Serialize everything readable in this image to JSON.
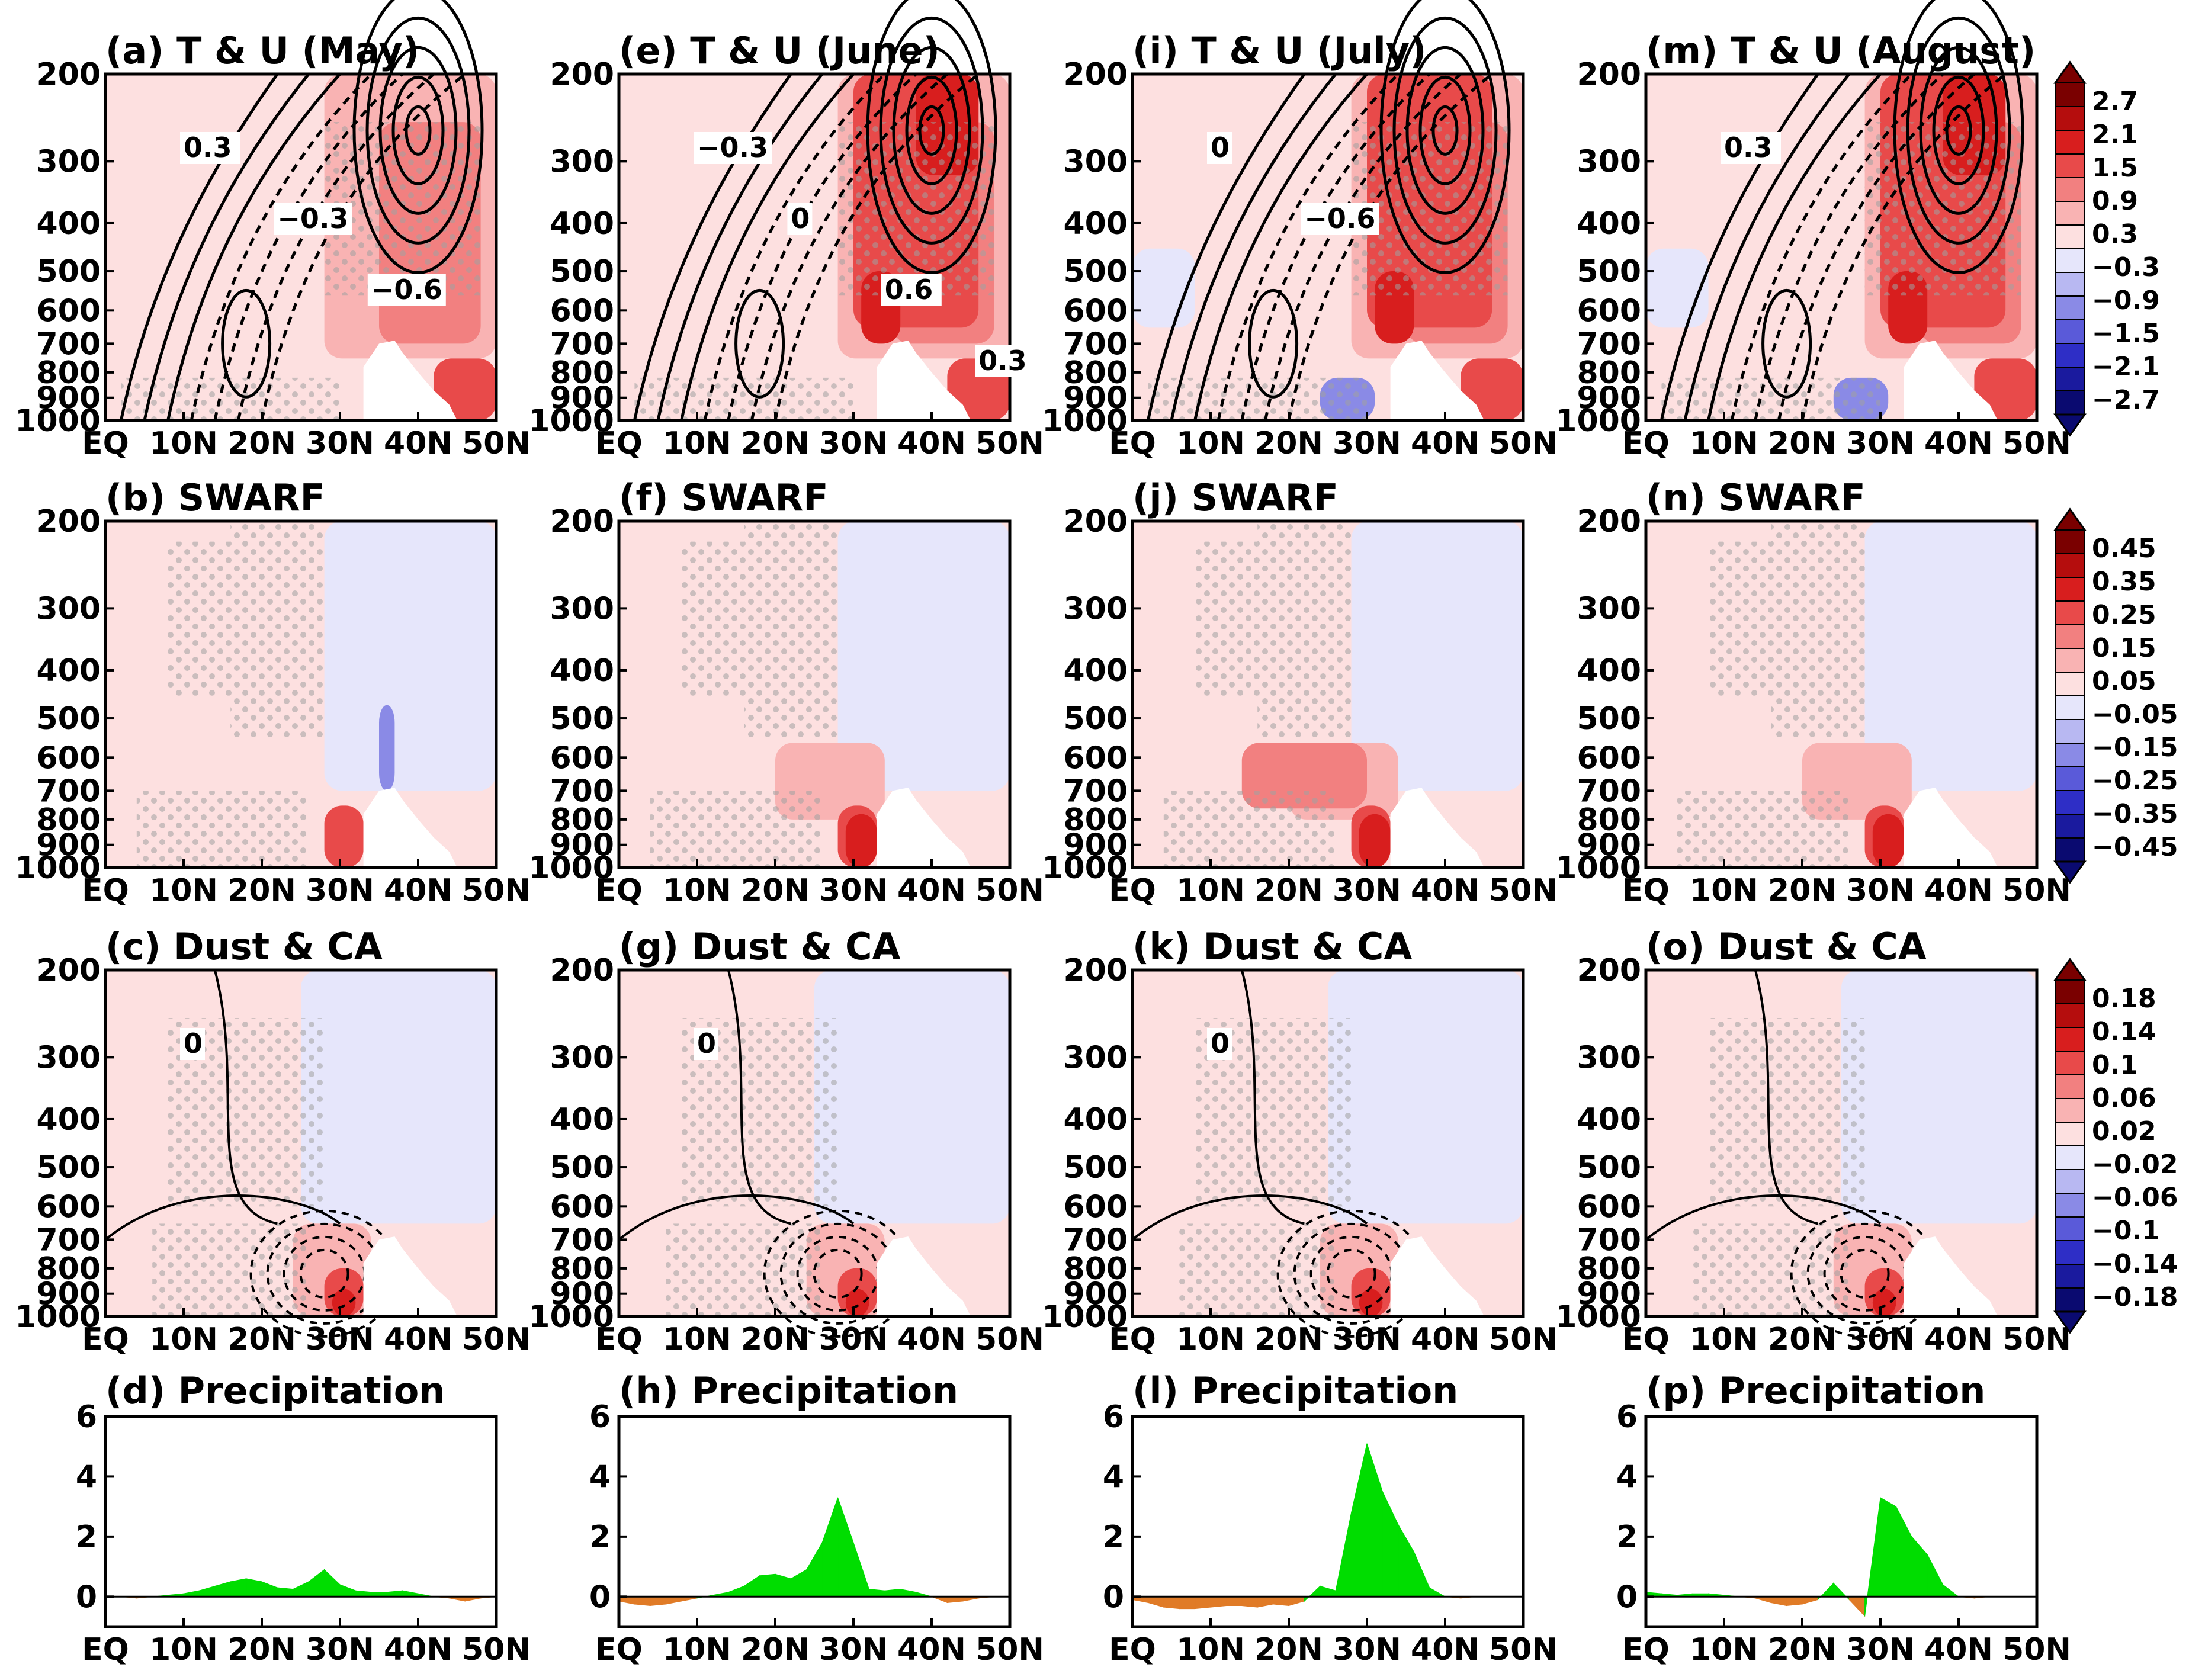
{
  "figure": {
    "columns": [
      {
        "month": "May",
        "panel_titles": [
          "(a) T & U (May)",
          "(b) SWARF",
          "(c) Dust & CA",
          "(d) Precipitation"
        ]
      },
      {
        "month": "June",
        "panel_titles": [
          "(e) T & U (June)",
          "(f) SWARF",
          "(g) Dust & CA",
          "(h) Precipitation"
        ]
      },
      {
        "month": "July",
        "panel_titles": [
          "(i) T & U (July)",
          "(j) SWARF",
          "(k) Dust & CA",
          "(l) Precipitation"
        ]
      },
      {
        "month": "August",
        "panel_titles": [
          "(m) T & U (August)",
          "(n) SWARF",
          "(o) Dust & CA",
          "(p) Precipitation"
        ]
      }
    ],
    "pressure_ticks": [
      "200",
      "300",
      "400",
      "500",
      "600",
      "700",
      "800",
      "900",
      "1000"
    ],
    "lat_ticks": [
      "EQ",
      "10N",
      "20N",
      "30N",
      "40N",
      "50N"
    ],
    "precip_ticks": [
      "6",
      "4",
      "2",
      "0"
    ],
    "contour_labels": {
      "a": [
        "0.3",
        "−0.3",
        "−0.6"
      ],
      "e": [
        "−0.3",
        "0",
        "0.6",
        "0.3"
      ],
      "i": [
        "0",
        "−0.6"
      ],
      "m": [
        "0.3"
      ],
      "c": [
        "0"
      ],
      "g": [
        "0"
      ],
      "k": [
        "0"
      ]
    },
    "colorbars": [
      {
        "row": "T & U",
        "labels": [
          "2.7",
          "2.1",
          "1.5",
          "0.9",
          "0.3",
          "−0.3",
          "−0.9",
          "−1.5",
          "−2.1",
          "−2.7"
        ]
      },
      {
        "row": "SWARF",
        "labels": [
          "0.45",
          "0.35",
          "0.25",
          "0.15",
          "0.05",
          "−0.05",
          "−0.15",
          "−0.25",
          "−0.35",
          "−0.45"
        ]
      },
      {
        "row": "Dust & CA",
        "labels": [
          "0.18",
          "0.14",
          "0.1",
          "0.06",
          "0.02",
          "−0.02",
          "−0.06",
          "−0.1",
          "−0.14",
          "−0.18"
        ]
      }
    ],
    "colors": {
      "warm_scale": [
        "#fde0e0",
        "#f9b3b3",
        "#f28080",
        "#e84a4a",
        "#d81e1e",
        "#b50d0d",
        "#7a0000"
      ],
      "cool_scale": [
        "#e6e6fb",
        "#b8b8f2",
        "#8a8ae6",
        "#5a5ad9",
        "#2e2ec6",
        "#1a1a9e",
        "#0a0a70"
      ],
      "precip_positive": "#00dd00",
      "precip_negative": "#e07b27",
      "stipple": "#a0a0a0"
    }
  },
  "chart_data": [
    {
      "type": "area",
      "title": "(d) Precipitation",
      "x_labels": [
        "EQ",
        "10N",
        "20N",
        "30N",
        "40N",
        "50N"
      ],
      "xlim": [
        0,
        50
      ],
      "ylim": [
        -1,
        6
      ],
      "x": [
        0,
        2,
        4,
        6,
        8,
        10,
        12,
        14,
        16,
        18,
        20,
        22,
        24,
        26,
        28,
        30,
        32,
        34,
        36,
        38,
        40,
        42,
        44,
        46,
        48,
        50
      ],
      "values": [
        0,
        0,
        -0.05,
        0,
        0.05,
        0.1,
        0.2,
        0.35,
        0.5,
        0.6,
        0.5,
        0.3,
        0.25,
        0.5,
        0.9,
        0.4,
        0.2,
        0.15,
        0.15,
        0.2,
        0.1,
        0,
        -0.05,
        -0.15,
        -0.05,
        0
      ]
    },
    {
      "type": "area",
      "title": "(h) Precipitation",
      "x_labels": [
        "EQ",
        "10N",
        "20N",
        "30N",
        "40N",
        "50N"
      ],
      "xlim": [
        0,
        50
      ],
      "ylim": [
        -1,
        6
      ],
      "x": [
        0,
        2,
        4,
        6,
        8,
        10,
        12,
        14,
        16,
        18,
        20,
        22,
        24,
        26,
        28,
        30,
        32,
        34,
        36,
        38,
        40,
        42,
        44,
        46,
        48,
        50
      ],
      "values": [
        -0.15,
        -0.25,
        -0.3,
        -0.25,
        -0.15,
        -0.05,
        0.05,
        0.15,
        0.35,
        0.7,
        0.75,
        0.6,
        0.9,
        1.8,
        3.3,
        1.8,
        0.25,
        0.2,
        0.25,
        0.15,
        0,
        -0.2,
        -0.15,
        -0.05,
        0,
        0
      ]
    },
    {
      "type": "area",
      "title": "(l) Precipitation",
      "x_labels": [
        "EQ",
        "10N",
        "20N",
        "30N",
        "40N",
        "50N"
      ],
      "xlim": [
        0,
        50
      ],
      "ylim": [
        -1,
        6
      ],
      "x": [
        0,
        2,
        4,
        6,
        8,
        10,
        12,
        14,
        16,
        18,
        20,
        22,
        24,
        26,
        28,
        30,
        32,
        34,
        36,
        38,
        40,
        42,
        44,
        46,
        48,
        50
      ],
      "values": [
        -0.1,
        -0.2,
        -0.35,
        -0.4,
        -0.4,
        -0.35,
        -0.3,
        -0.3,
        -0.35,
        -0.25,
        -0.3,
        -0.15,
        0.35,
        0.2,
        2.8,
        5.1,
        3.5,
        2.4,
        1.5,
        0.3,
        0,
        -0.05,
        0,
        0,
        0,
        0
      ]
    },
    {
      "type": "area",
      "title": "(p) Precipitation",
      "x_labels": [
        "EQ",
        "10N",
        "20N",
        "30N",
        "40N",
        "50N"
      ],
      "xlim": [
        0,
        50
      ],
      "ylim": [
        -1,
        6
      ],
      "x": [
        0,
        2,
        4,
        6,
        8,
        10,
        12,
        14,
        16,
        18,
        20,
        22,
        24,
        26,
        28,
        30,
        32,
        34,
        36,
        38,
        40,
        42,
        44,
        46,
        48,
        50
      ],
      "values": [
        0.15,
        0.1,
        0.05,
        0.1,
        0.1,
        0.05,
        0,
        -0.05,
        -0.2,
        -0.3,
        -0.25,
        -0.1,
        0.45,
        -0.1,
        -0.65,
        3.3,
        3.0,
        2.0,
        1.4,
        0.4,
        0,
        -0.05,
        0,
        0,
        0,
        0
      ]
    }
  ]
}
